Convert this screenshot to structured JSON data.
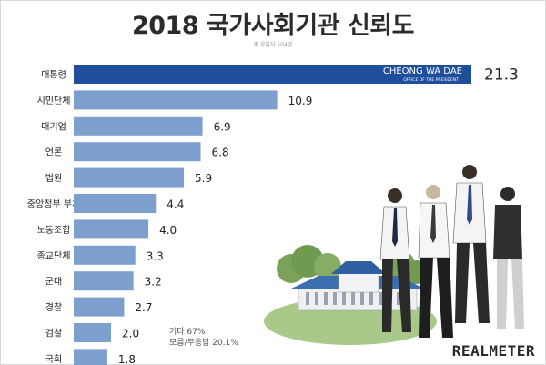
{
  "title": "2018 국가사회기관 신뢰도",
  "subtitle": "총 응답자 504명",
  "brand": "REALMETER",
  "notes": {
    "line1": "기타 67%",
    "line2": "모름/무응답 20.1%"
  },
  "highlight_bar": {
    "caption": "CHEONG WA DAE",
    "subcaption": "OFFICE OF THE PRESIDENT"
  },
  "colors": {
    "bar": "#7c9fce",
    "highlight": "#1f4e9c",
    "text": "#222222"
  },
  "chart_data": {
    "type": "bar",
    "orientation": "horizontal",
    "categories": [
      "대통령",
      "시민단체",
      "대기업",
      "언론",
      "법원",
      "중앙정부 부처",
      "노동조합",
      "종교단체",
      "군대",
      "경찰",
      "검찰",
      "국회"
    ],
    "values": [
      21.3,
      10.9,
      6.9,
      6.8,
      5.9,
      4.4,
      4.0,
      3.3,
      3.2,
      2.7,
      2.0,
      1.8
    ],
    "value_labels": [
      "21.3",
      "10.9",
      "6.9",
      "6.8",
      "5.9",
      "4.4",
      "4.0",
      "3.3",
      "3.2",
      "2.7",
      "2.0",
      "1.8"
    ],
    "title": "2018 국가사회기관 신뢰도",
    "xlim": [
      0,
      21.3
    ],
    "grid": false,
    "legend": "none"
  }
}
